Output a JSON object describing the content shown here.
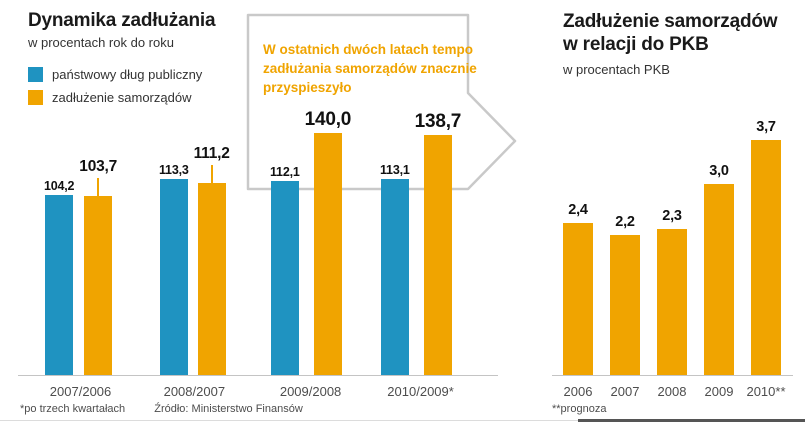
{
  "page": {
    "footnote_left": "*po trzech kwartałach",
    "source": "Źródło: Ministerstwo Finansów",
    "footnote_right": "**prognoza"
  },
  "colors": {
    "blue": "#1f93c1",
    "orange": "#f0a400"
  },
  "left_chart": {
    "title": "Dynamika zadłużania",
    "subtitle": "w procentach rok do roku",
    "legend": [
      {
        "label": "państwowy dług publiczny",
        "color": "#1f93c1"
      },
      {
        "label": "zadłużenie samorządów",
        "color": "#f0a400"
      }
    ],
    "callout": "W ostatnich dwóch latach tempo zadłużania samorządów znacznie przyspieszyło"
  },
  "right_chart": {
    "title_line1": "Zadłużenie samorządów",
    "title_line2": "w relacji do PKB",
    "subtitle": "w procentach PKB"
  },
  "chart_data": [
    {
      "type": "bar",
      "title": "Dynamika zadłużania",
      "subtitle": "w procentach rok do roku",
      "categories": [
        "2007/2006",
        "2008/2007",
        "2009/2008",
        "2010/2009*"
      ],
      "series": [
        {
          "name": "państwowy dług publiczny",
          "color": "#1f93c1",
          "values": [
            104.2,
            113.3,
            112.1,
            113.1
          ],
          "labels": [
            "104,2",
            "113,3",
            "112,1",
            "113,1"
          ]
        },
        {
          "name": "zadłużenie samorządów",
          "color": "#f0a400",
          "values": [
            103.7,
            111.2,
            140.0,
            138.7
          ],
          "labels": [
            "103,7",
            "111,2",
            "140,0",
            "138,7"
          ]
        }
      ],
      "ylim": [
        0,
        150
      ],
      "legend_position": "top-left",
      "grid": false
    },
    {
      "type": "bar",
      "title": "Zadłużenie samorządów w relacji do PKB",
      "subtitle": "w procentach PKB",
      "categories": [
        "2006",
        "2007",
        "2008",
        "2009",
        "2010**"
      ],
      "values": [
        2.4,
        2.2,
        2.3,
        3.0,
        3.7
      ],
      "labels": [
        "2,4",
        "2,2",
        "2,3",
        "3,0",
        "3,7"
      ],
      "color": "#f0a400",
      "ylim": [
        0,
        4
      ],
      "grid": false
    }
  ]
}
